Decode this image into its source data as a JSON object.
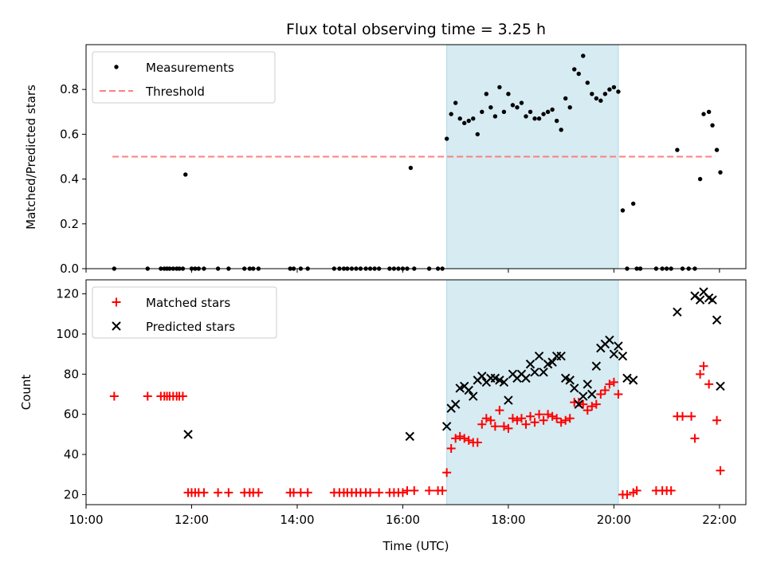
{
  "figure": {
    "title": "Flux total observing time = 3.25 h",
    "xlabel": "Time (UTC)",
    "x_ticks": [
      "10:00",
      "12:00",
      "14:00",
      "16:00",
      "18:00",
      "20:00",
      "22:00"
    ]
  },
  "chart_data": [
    {
      "type": "scatter",
      "ylabel": "Matched/Predicted stars",
      "xlim": [
        "10:00",
        "22:30"
      ],
      "ylim": [
        0,
        1.0
      ],
      "yticks": [
        0.0,
        0.2,
        0.4,
        0.6,
        0.8
      ],
      "ytick_labels": [
        "0.0",
        "0.2",
        "0.4",
        "0.6",
        "0.8"
      ],
      "legend_position": "top-left",
      "shaded_span": {
        "x": [
          "16:50",
          "20:05"
        ],
        "color": "#add8e6"
      },
      "threshold": {
        "name": "Threshold",
        "y": 0.5,
        "x": [
          "10:30",
          "21:55"
        ],
        "color": "#ff7f7f",
        "style": "dashed"
      },
      "series": [
        {
          "name": "Measurements",
          "color": "#000000",
          "marker": "dot",
          "points": [
            [
              "10:32",
              0
            ],
            [
              "11:10",
              0
            ],
            [
              "11:25",
              0
            ],
            [
              "11:29",
              0
            ],
            [
              "11:32",
              0
            ],
            [
              "11:35",
              0
            ],
            [
              "11:39",
              0
            ],
            [
              "11:43",
              0
            ],
            [
              "11:46",
              0
            ],
            [
              "11:50",
              0
            ],
            [
              "11:53",
              0.42
            ],
            [
              "12:00",
              0
            ],
            [
              "12:04",
              0
            ],
            [
              "12:08",
              0
            ],
            [
              "12:14",
              0
            ],
            [
              "12:30",
              0
            ],
            [
              "12:42",
              0
            ],
            [
              "13:00",
              0
            ],
            [
              "13:06",
              0
            ],
            [
              "13:10",
              0
            ],
            [
              "13:16",
              0
            ],
            [
              "13:52",
              0
            ],
            [
              "13:56",
              0
            ],
            [
              "14:04",
              0
            ],
            [
              "14:12",
              0
            ],
            [
              "14:42",
              0
            ],
            [
              "14:48",
              0
            ],
            [
              "14:53",
              0
            ],
            [
              "14:57",
              0
            ],
            [
              "15:02",
              0
            ],
            [
              "15:07",
              0
            ],
            [
              "15:12",
              0
            ],
            [
              "15:18",
              0
            ],
            [
              "15:23",
              0
            ],
            [
              "15:28",
              0
            ],
            [
              "15:33",
              0
            ],
            [
              "15:45",
              0
            ],
            [
              "15:50",
              0
            ],
            [
              "15:55",
              0
            ],
            [
              "16:00",
              0
            ],
            [
              "16:05",
              0
            ],
            [
              "16:09",
              0.45
            ],
            [
              "16:13",
              0
            ],
            [
              "16:30",
              0
            ],
            [
              "16:40",
              0
            ],
            [
              "16:45",
              0
            ],
            [
              "16:50",
              0.58
            ],
            [
              "16:55",
              0.69
            ],
            [
              "17:00",
              0.74
            ],
            [
              "17:05",
              0.67
            ],
            [
              "17:10",
              0.65
            ],
            [
              "17:15",
              0.66
            ],
            [
              "17:20",
              0.67
            ],
            [
              "17:25",
              0.6
            ],
            [
              "17:30",
              0.7
            ],
            [
              "17:35",
              0.78
            ],
            [
              "17:40",
              0.72
            ],
            [
              "17:45",
              0.68
            ],
            [
              "17:50",
              0.81
            ],
            [
              "17:55",
              0.7
            ],
            [
              "18:00",
              0.78
            ],
            [
              "18:05",
              0.73
            ],
            [
              "18:10",
              0.72
            ],
            [
              "18:15",
              0.74
            ],
            [
              "18:20",
              0.68
            ],
            [
              "18:25",
              0.7
            ],
            [
              "18:30",
              0.67
            ],
            [
              "18:35",
              0.67
            ],
            [
              "18:40",
              0.69
            ],
            [
              "18:45",
              0.7
            ],
            [
              "18:50",
              0.71
            ],
            [
              "18:55",
              0.66
            ],
            [
              "19:00",
              0.62
            ],
            [
              "19:05",
              0.76
            ],
            [
              "19:10",
              0.72
            ],
            [
              "19:15",
              0.89
            ],
            [
              "19:20",
              0.87
            ],
            [
              "19:25",
              0.95
            ],
            [
              "19:30",
              0.83
            ],
            [
              "19:35",
              0.78
            ],
            [
              "19:40",
              0.76
            ],
            [
              "19:45",
              0.75
            ],
            [
              "19:50",
              0.78
            ],
            [
              "19:55",
              0.8
            ],
            [
              "20:00",
              0.81
            ],
            [
              "20:05",
              0.79
            ],
            [
              "20:10",
              0.26
            ],
            [
              "20:15",
              0
            ],
            [
              "20:22",
              0.29
            ],
            [
              "20:26",
              0
            ],
            [
              "20:30",
              0
            ],
            [
              "20:48",
              0
            ],
            [
              "20:55",
              0
            ],
            [
              "21:00",
              0
            ],
            [
              "21:05",
              0
            ],
            [
              "21:12",
              0.53
            ],
            [
              "21:18",
              0
            ],
            [
              "21:25",
              0
            ],
            [
              "21:32",
              0
            ],
            [
              "21:38",
              0.4
            ],
            [
              "21:42",
              0.69
            ],
            [
              "21:48",
              0.7
            ],
            [
              "21:52",
              0.64
            ],
            [
              "21:57",
              0.53
            ],
            [
              "22:01",
              0.43
            ]
          ]
        }
      ]
    },
    {
      "type": "scatter",
      "ylabel": "Count",
      "xlabel": "Time (UTC)",
      "xlim": [
        "10:00",
        "22:30"
      ],
      "ylim": [
        15,
        127
      ],
      "yticks": [
        20,
        40,
        60,
        80,
        100,
        120
      ],
      "ytick_labels": [
        "20",
        "40",
        "60",
        "80",
        "100",
        "120"
      ],
      "legend_position": "top-left",
      "shaded_span": {
        "x": [
          "16:50",
          "20:05"
        ],
        "color": "#add8e6"
      },
      "series": [
        {
          "name": "Matched stars",
          "color": "#ff0000",
          "marker": "plus",
          "points": [
            [
              "10:32",
              69
            ],
            [
              "11:10",
              69
            ],
            [
              "11:25",
              69
            ],
            [
              "11:29",
              69
            ],
            [
              "11:32",
              69
            ],
            [
              "11:35",
              69
            ],
            [
              "11:39",
              69
            ],
            [
              "11:43",
              69
            ],
            [
              "11:46",
              69
            ],
            [
              "11:50",
              69
            ],
            [
              "11:56",
              21
            ],
            [
              "12:00",
              21
            ],
            [
              "12:04",
              21
            ],
            [
              "12:08",
              21
            ],
            [
              "12:14",
              21
            ],
            [
              "12:30",
              21
            ],
            [
              "12:42",
              21
            ],
            [
              "13:00",
              21
            ],
            [
              "13:06",
              21
            ],
            [
              "13:10",
              21
            ],
            [
              "13:16",
              21
            ],
            [
              "13:52",
              21
            ],
            [
              "13:56",
              21
            ],
            [
              "14:04",
              21
            ],
            [
              "14:12",
              21
            ],
            [
              "14:42",
              21
            ],
            [
              "14:48",
              21
            ],
            [
              "14:53",
              21
            ],
            [
              "14:57",
              21
            ],
            [
              "15:02",
              21
            ],
            [
              "15:07",
              21
            ],
            [
              "15:12",
              21
            ],
            [
              "15:18",
              21
            ],
            [
              "15:23",
              21
            ],
            [
              "15:33",
              21
            ],
            [
              "15:45",
              21
            ],
            [
              "15:50",
              21
            ],
            [
              "15:55",
              21
            ],
            [
              "16:00",
              21
            ],
            [
              "16:05",
              22
            ],
            [
              "16:13",
              22
            ],
            [
              "16:30",
              22
            ],
            [
              "16:40",
              22
            ],
            [
              "16:45",
              22
            ],
            [
              "16:50",
              31
            ],
            [
              "16:55",
              43
            ],
            [
              "17:00",
              48
            ],
            [
              "17:05",
              49
            ],
            [
              "17:10",
              48
            ],
            [
              "17:15",
              47
            ],
            [
              "17:20",
              46
            ],
            [
              "17:25",
              46
            ],
            [
              "17:30",
              55
            ],
            [
              "17:35",
              58
            ],
            [
              "17:40",
              57
            ],
            [
              "17:45",
              54
            ],
            [
              "17:50",
              62
            ],
            [
              "17:55",
              54
            ],
            [
              "18:00",
              53
            ],
            [
              "18:05",
              58
            ],
            [
              "18:10",
              57
            ],
            [
              "18:15",
              58
            ],
            [
              "18:20",
              55
            ],
            [
              "18:25",
              59
            ],
            [
              "18:30",
              56
            ],
            [
              "18:35",
              60
            ],
            [
              "18:40",
              57
            ],
            [
              "18:45",
              60
            ],
            [
              "18:50",
              59
            ],
            [
              "18:55",
              58
            ],
            [
              "19:00",
              56
            ],
            [
              "19:05",
              57
            ],
            [
              "19:10",
              58
            ],
            [
              "19:15",
              66
            ],
            [
              "19:20",
              66
            ],
            [
              "19:25",
              65
            ],
            [
              "19:30",
              62
            ],
            [
              "19:35",
              64
            ],
            [
              "19:40",
              65
            ],
            [
              "19:45",
              70
            ],
            [
              "19:50",
              72
            ],
            [
              "19:55",
              75
            ],
            [
              "20:00",
              76
            ],
            [
              "20:05",
              70
            ],
            [
              "20:10",
              20
            ],
            [
              "20:15",
              20
            ],
            [
              "20:22",
              21
            ],
            [
              "20:26",
              22
            ],
            [
              "20:48",
              22
            ],
            [
              "20:55",
              22
            ],
            [
              "21:00",
              22
            ],
            [
              "21:05",
              22
            ],
            [
              "21:12",
              59
            ],
            [
              "21:18",
              59
            ],
            [
              "21:28",
              59
            ],
            [
              "21:32",
              48
            ],
            [
              "21:38",
              80
            ],
            [
              "21:42",
              84
            ],
            [
              "21:48",
              75
            ],
            [
              "21:57",
              57
            ],
            [
              "22:01",
              32
            ]
          ]
        },
        {
          "name": "Predicted stars",
          "color": "#000000",
          "marker": "x",
          "points": [
            [
              "11:56",
              50
            ],
            [
              "16:08",
              49
            ],
            [
              "16:50",
              54
            ],
            [
              "16:55",
              63
            ],
            [
              "17:00",
              65
            ],
            [
              "17:05",
              73
            ],
            [
              "17:10",
              74
            ],
            [
              "17:15",
              72
            ],
            [
              "17:20",
              69
            ],
            [
              "17:25",
              77
            ],
            [
              "17:30",
              79
            ],
            [
              "17:35",
              76
            ],
            [
              "17:40",
              78
            ],
            [
              "17:45",
              78
            ],
            [
              "17:50",
              77
            ],
            [
              "17:55",
              76
            ],
            [
              "18:00",
              67
            ],
            [
              "18:05",
              80
            ],
            [
              "18:10",
              78
            ],
            [
              "18:15",
              80
            ],
            [
              "18:20",
              78
            ],
            [
              "18:25",
              85
            ],
            [
              "18:30",
              81
            ],
            [
              "18:35",
              89
            ],
            [
              "18:40",
              81
            ],
            [
              "18:45",
              85
            ],
            [
              "18:50",
              86
            ],
            [
              "18:55",
              89
            ],
            [
              "19:00",
              89
            ],
            [
              "19:05",
              78
            ],
            [
              "19:10",
              77
            ],
            [
              "19:15",
              73
            ],
            [
              "19:20",
              65
            ],
            [
              "19:25",
              69
            ],
            [
              "19:30",
              75
            ],
            [
              "19:35",
              70
            ],
            [
              "19:40",
              84
            ],
            [
              "19:45",
              93
            ],
            [
              "19:50",
              95
            ],
            [
              "19:55",
              97
            ],
            [
              "20:00",
              90
            ],
            [
              "20:05",
              94
            ],
            [
              "20:10",
              89
            ],
            [
              "20:15",
              78
            ],
            [
              "20:22",
              77
            ],
            [
              "21:12",
              111
            ],
            [
              "21:32",
              119
            ],
            [
              "21:38",
              117
            ],
            [
              "21:42",
              121
            ],
            [
              "21:48",
              118
            ],
            [
              "21:52",
              117
            ],
            [
              "21:57",
              107
            ],
            [
              "22:01",
              74
            ]
          ]
        }
      ]
    }
  ]
}
